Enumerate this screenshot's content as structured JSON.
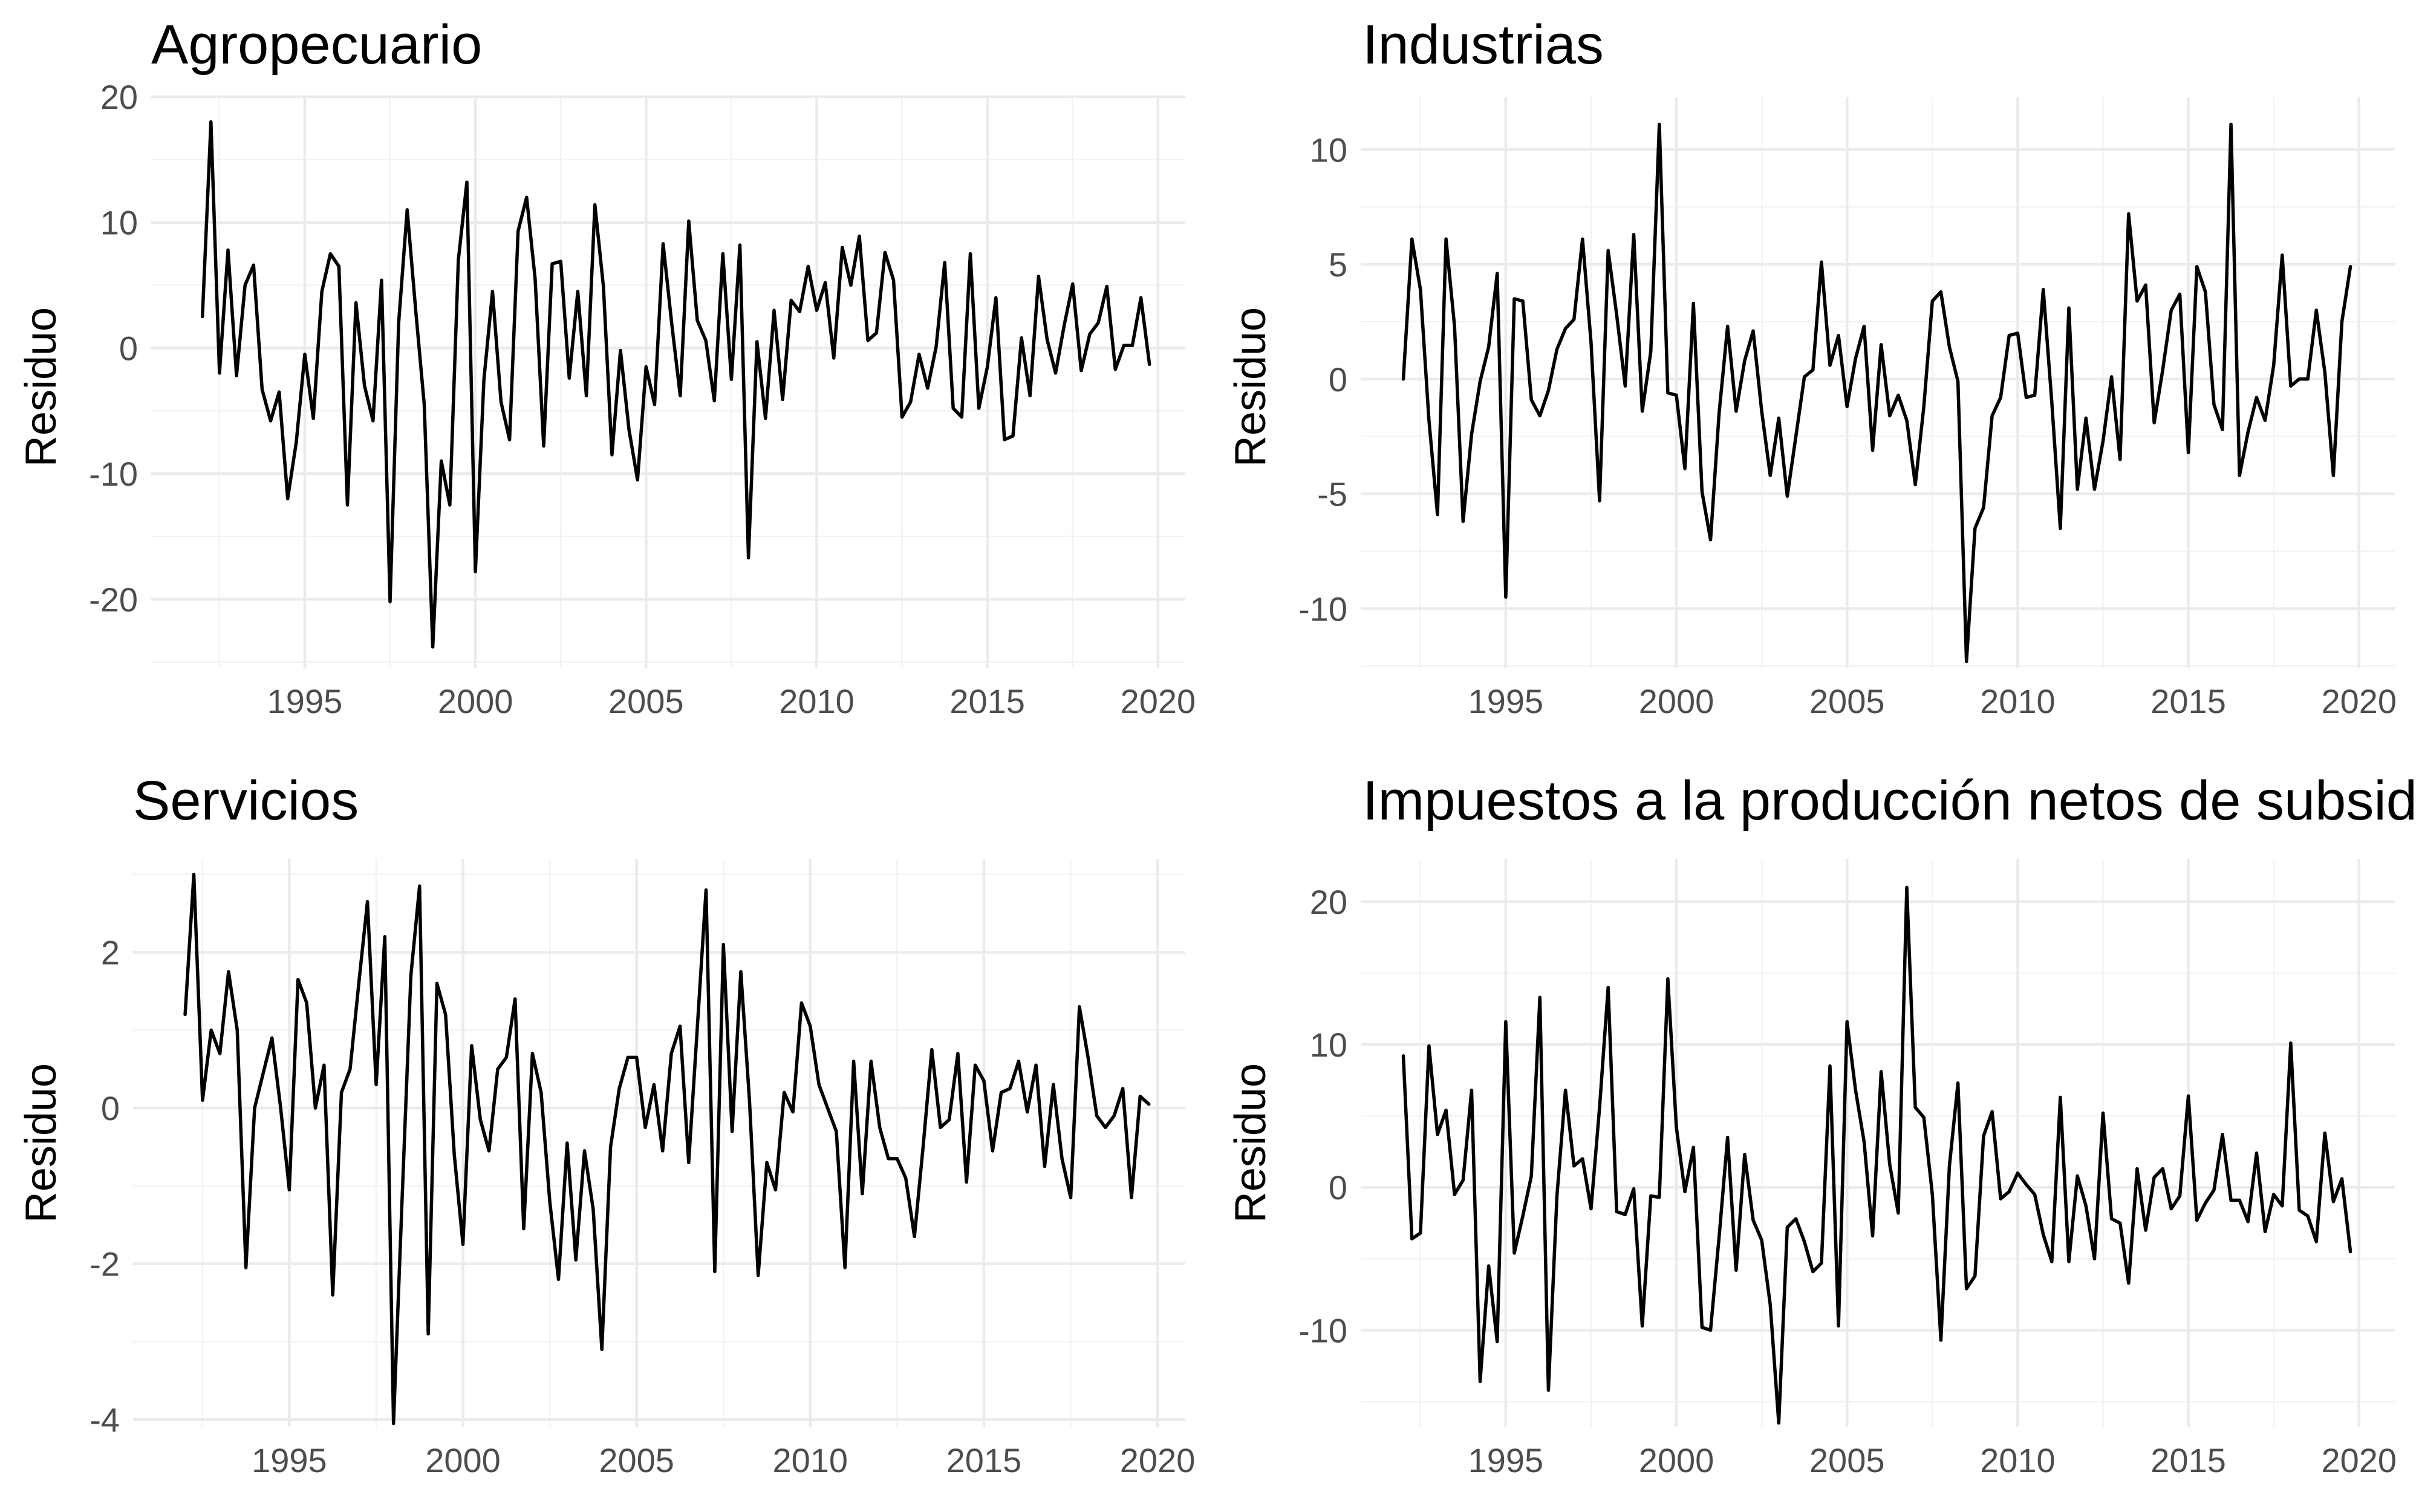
{
  "chart_data": [
    {
      "type": "line",
      "title": "Agropecuario",
      "xlabel": "",
      "ylabel": "Residuo",
      "x_start": 1992.0,
      "x_step": 0.25,
      "xlim": [
        1990.5,
        2020.8
      ],
      "ylim": [
        -25.5,
        20.0
      ],
      "x_ticks": [
        1995,
        2000,
        2005,
        2010,
        2015,
        2020
      ],
      "y_ticks": [
        -20,
        -10,
        0,
        10,
        20
      ],
      "grid": true,
      "series": [
        {
          "values": [
            2.5,
            18.0,
            -2.0,
            7.8,
            -2.2,
            5.0,
            6.6,
            -3.3,
            -5.8,
            -3.5,
            -12.0,
            -7.5,
            -0.5,
            -5.6,
            4.5,
            7.5,
            6.5,
            -12.5,
            3.6,
            -3.0,
            -5.8,
            5.4,
            -20.2,
            2.0,
            11.0,
            3.0,
            -4.5,
            -23.8,
            -9.0,
            -12.5,
            7.0,
            13.2,
            -17.8,
            -2.5,
            4.5,
            -4.3,
            -7.3,
            9.3,
            12.0,
            5.5,
            -7.8,
            6.7,
            6.9,
            -2.4,
            4.5,
            -3.8,
            11.4,
            4.9,
            -8.5,
            -0.2,
            -6.5,
            -10.5,
            -1.5,
            -4.5,
            8.3,
            2.0,
            -3.8,
            10.1,
            2.2,
            0.6,
            -4.2,
            7.5,
            -2.5,
            8.2,
            -16.7,
            0.5,
            -5.6,
            3.0,
            -4.1,
            3.8,
            2.9,
            6.5,
            3.0,
            5.2,
            -0.8,
            8.0,
            5.0,
            8.9,
            0.6,
            1.2,
            7.6,
            5.4,
            -5.5,
            -4.3,
            -0.5,
            -3.2,
            0.1,
            6.8,
            -4.8,
            -5.5,
            7.5,
            -4.8,
            -1.5,
            4.0,
            -7.3,
            -7.0,
            0.8,
            -3.8,
            5.7,
            0.7,
            -2.0,
            1.8,
            5.1,
            -1.8,
            1.1,
            2.0,
            4.9,
            -1.7,
            0.2,
            0.2,
            4.0,
            -1.3
          ]
        }
      ]
    },
    {
      "type": "line",
      "title": "Industrias",
      "xlabel": "",
      "ylabel": "Residuo",
      "x_start": 1992.0,
      "x_step": 0.25,
      "xlim": [
        1990.75,
        2021.05
      ],
      "ylim": [
        -12.6,
        12.3
      ],
      "x_ticks": [
        1995,
        2000,
        2005,
        2010,
        2015,
        2020
      ],
      "y_ticks": [
        -10,
        -5,
        0,
        5,
        10
      ],
      "grid": true,
      "series": [
        {
          "values": [
            0.0,
            6.1,
            3.9,
            -1.8,
            -5.9,
            6.1,
            2.3,
            -6.2,
            -2.4,
            -0.1,
            1.4,
            4.6,
            -9.5,
            3.5,
            3.4,
            -0.9,
            -1.6,
            -0.5,
            1.3,
            2.2,
            2.6,
            6.1,
            1.6,
            -5.3,
            5.6,
            2.8,
            -0.3,
            6.3,
            -1.4,
            1.2,
            11.1,
            -0.6,
            -0.7,
            -3.9,
            3.3,
            -4.9,
            -7.0,
            -1.5,
            2.3,
            -1.4,
            0.8,
            2.1,
            -1.4,
            -4.2,
            -1.7,
            -5.1,
            -2.5,
            0.1,
            0.4,
            5.1,
            0.6,
            1.9,
            -1.2,
            0.9,
            2.3,
            -3.1,
            1.5,
            -1.6,
            -0.7,
            -1.8,
            -4.6,
            -1.2,
            3.4,
            3.8,
            1.4,
            -0.1,
            -12.3,
            -6.5,
            -5.6,
            -1.6,
            -0.8,
            1.9,
            2.0,
            -0.8,
            -0.7,
            3.9,
            -1.0,
            -6.5,
            3.1,
            -4.8,
            -1.7,
            -4.8,
            -2.7,
            0.1,
            -3.5,
            7.2,
            3.4,
            4.1,
            -1.9,
            0.4,
            3.0,
            3.7,
            -3.2,
            4.9,
            3.8,
            -1.1,
            -2.2,
            11.1,
            -4.2,
            -2.3,
            -0.8,
            -1.8,
            0.6,
            5.4,
            -0.3,
            0.0,
            0.0,
            3.0,
            0.3,
            -4.2,
            2.5,
            4.9
          ]
        }
      ]
    },
    {
      "type": "line",
      "title": "Servicios",
      "xlabel": "",
      "ylabel": "Residuo",
      "x_start": 1992.0,
      "x_step": 0.25,
      "xlim": [
        1990.5,
        2020.8
      ],
      "ylim": [
        -4.1,
        3.2
      ],
      "x_ticks": [
        1995,
        2000,
        2005,
        2010,
        2015,
        2020
      ],
      "y_ticks": [
        -4,
        -2,
        0,
        2
      ],
      "grid": true,
      "series": [
        {
          "values": [
            1.2,
            3.0,
            0.1,
            1.0,
            0.7,
            1.75,
            1.0,
            -2.05,
            0.0,
            0.45,
            0.9,
            0.0,
            -1.05,
            1.65,
            1.35,
            0.0,
            0.55,
            -2.4,
            0.2,
            0.5,
            1.6,
            2.65,
            0.3,
            2.2,
            -4.05,
            -1.15,
            1.7,
            2.85,
            -2.9,
            1.6,
            1.2,
            -0.6,
            -1.75,
            0.8,
            -0.15,
            -0.55,
            0.5,
            0.65,
            1.4,
            -1.55,
            0.7,
            0.2,
            -1.2,
            -2.2,
            -0.45,
            -1.95,
            -0.55,
            -1.3,
            -3.1,
            -0.5,
            0.25,
            0.65,
            0.65,
            -0.25,
            0.3,
            -0.55,
            0.7,
            1.05,
            -0.7,
            1.05,
            2.8,
            -2.1,
            2.1,
            -0.3,
            1.75,
            0.1,
            -2.15,
            -0.7,
            -1.05,
            0.2,
            -0.05,
            1.35,
            1.05,
            0.3,
            0.0,
            -0.3,
            -2.05,
            0.6,
            -1.1,
            0.6,
            -0.25,
            -0.65,
            -0.65,
            -0.9,
            -1.65,
            -0.5,
            0.75,
            -0.25,
            -0.15,
            0.7,
            -0.95,
            0.55,
            0.35,
            -0.55,
            0.2,
            0.25,
            0.6,
            -0.05,
            0.55,
            -0.75,
            0.3,
            -0.65,
            -1.15,
            1.3,
            0.65,
            -0.1,
            -0.25,
            -0.1,
            0.25,
            -1.15,
            0.15,
            0.05
          ]
        }
      ]
    },
    {
      "type": "line",
      "title": "Impuestos a la producción netos de subsidios",
      "xlabel": "",
      "ylabel": "Residuo",
      "x_start": 1992.0,
      "x_step": 0.25,
      "xlim": [
        1990.75,
        2021.05
      ],
      "ylim": [
        -16.8,
        23.0
      ],
      "x_ticks": [
        1995,
        2000,
        2005,
        2010,
        2015,
        2020
      ],
      "y_ticks": [
        -10,
        0,
        10,
        20
      ],
      "grid": true,
      "series": [
        {
          "values": [
            9.2,
            -3.6,
            -3.2,
            9.9,
            3.7,
            5.4,
            -0.5,
            0.5,
            6.8,
            -13.6,
            -5.5,
            -10.8,
            11.6,
            -4.6,
            -2.0,
            0.8,
            13.3,
            -14.2,
            -0.6,
            6.8,
            1.5,
            2.0,
            -1.5,
            5.6,
            14.0,
            -1.7,
            -1.9,
            -0.1,
            -9.7,
            -0.6,
            -0.7,
            14.6,
            4.2,
            -0.3,
            2.8,
            -9.8,
            -10.0,
            -3.5,
            3.5,
            -5.8,
            2.3,
            -2.3,
            -3.7,
            -8.2,
            -16.5,
            -2.8,
            -2.2,
            -3.8,
            -5.9,
            -5.3,
            8.5,
            -9.7,
            11.6,
            6.8,
            3.2,
            -3.4,
            8.1,
            1.6,
            -1.8,
            21.0,
            5.6,
            4.9,
            -0.5,
            -10.7,
            1.5,
            7.3,
            -7.1,
            -6.2,
            3.6,
            5.3,
            -0.8,
            -0.3,
            1.0,
            0.2,
            -0.5,
            -3.3,
            -5.2,
            6.3,
            -5.2,
            0.8,
            -1.3,
            -5.0,
            5.2,
            -2.2,
            -2.5,
            -6.7,
            1.3,
            -3.0,
            0.7,
            1.3,
            -1.5,
            -0.6,
            6.4,
            -2.3,
            -1.1,
            -0.2,
            3.7,
            -0.9,
            -0.9,
            -2.4,
            2.4,
            -3.1,
            -0.5,
            -1.3,
            10.1,
            -1.6,
            -2.0,
            -3.8,
            3.8,
            -1.0,
            0.6,
            -4.5
          ]
        }
      ]
    }
  ]
}
